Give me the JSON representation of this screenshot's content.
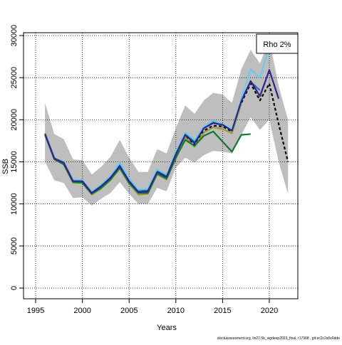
{
  "chart_data": {
    "type": "line",
    "xlabel": "Years",
    "ylabel": "SSB",
    "x": [
      1996,
      1997,
      1998,
      1999,
      2000,
      2001,
      2002,
      2003,
      2004,
      2005,
      2006,
      2007,
      2008,
      2009,
      2010,
      2011,
      2012,
      2013,
      2014,
      2015,
      2016,
      2017,
      2018,
      2019,
      2020,
      2021,
      2022
    ],
    "band": {
      "color": "#bebebe",
      "upper": [
        22000,
        18300,
        17700,
        15300,
        15200,
        13500,
        14400,
        15600,
        17600,
        15500,
        13800,
        13800,
        16500,
        16000,
        19000,
        21700,
        20700,
        22300,
        23200,
        23000,
        22000,
        26000,
        28300,
        26700,
        29500,
        24000,
        20000
      ],
      "lower": [
        15000,
        12800,
        12500,
        10700,
        10800,
        9800,
        10600,
        11300,
        12600,
        11200,
        10000,
        10000,
        11900,
        11500,
        14300,
        15500,
        14900,
        15800,
        16300,
        16200,
        16000,
        18200,
        20300,
        18800,
        20000,
        15000,
        11200
      ]
    },
    "series": [
      {
        "color": "#000000",
        "dash": true,
        "values": [
          18300,
          15400,
          14800,
          12700,
          12600,
          11300,
          12000,
          13000,
          14400,
          12600,
          11300,
          11400,
          13700,
          13100,
          15700,
          18000,
          17000,
          18700,
          19300,
          19200,
          18600,
          22000,
          24300,
          22300,
          24300,
          19500,
          15000
        ]
      },
      {
        "color": "#999933",
        "values": [
          18400,
          15300,
          14700,
          12500,
          12500,
          11100,
          11800,
          12800,
          14200,
          12400,
          11100,
          11200,
          13500,
          12900,
          15400,
          17900,
          16800,
          18500,
          19100,
          18900,
          18400,
          21900,
          null,
          null,
          null,
          null,
          null
        ]
      },
      {
        "color": "#117733",
        "values": [
          18200,
          15300,
          14700,
          12600,
          12500,
          11200,
          11900,
          12900,
          14300,
          12500,
          11300,
          11300,
          13600,
          13000,
          15500,
          17600,
          16900,
          18100,
          18600,
          17400,
          16200,
          18200,
          18300,
          null,
          null,
          null,
          null
        ]
      },
      {
        "color": "#2a6db0",
        "values": [
          18300,
          15500,
          14900,
          12800,
          12800,
          11400,
          12200,
          13200,
          14700,
          12800,
          11600,
          11600,
          13900,
          13400,
          16000,
          18300,
          17400,
          19100,
          19700,
          19400,
          18800,
          22300,
          24500,
          23500,
          null,
          null,
          null
        ]
      },
      {
        "color": "#66ccee",
        "values": [
          18300,
          15500,
          15000,
          12900,
          12800,
          11500,
          12300,
          13300,
          14900,
          13000,
          11700,
          11800,
          14100,
          13500,
          16200,
          18500,
          17600,
          19200,
          19900,
          19500,
          18900,
          22500,
          26000,
          25000,
          28700,
          null,
          null
        ]
      },
      {
        "color": "#332288",
        "values": [
          18300,
          15400,
          14900,
          12700,
          12700,
          11300,
          12100,
          13100,
          14500,
          12700,
          11400,
          11500,
          13800,
          13200,
          15900,
          18200,
          17200,
          19000,
          19600,
          19400,
          18700,
          22200,
          24600,
          22800,
          25900,
          22500,
          null
        ]
      }
    ],
    "xlim": [
      1993.7,
      2023.05
    ],
    "xticks": [
      1995,
      2000,
      2005,
      2010,
      2015,
      2020
    ],
    "ylim": [
      -1270,
      30340
    ],
    "yticks": [
      0,
      5000,
      10000,
      15000,
      20000,
      25000,
      30000
    ],
    "grid": true,
    "legend": {
      "text": "Rho 2%",
      "position": "top-right"
    },
    "footnote": "stockassessment.org, lin27.5b_wgdeep2023_final, r17368 , git:ec2c2a0c6dde"
  }
}
